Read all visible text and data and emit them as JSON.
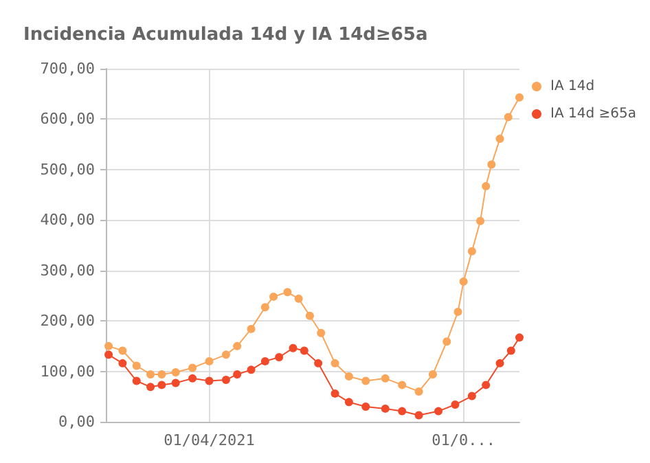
{
  "chart_data": {
    "type": "line",
    "title": "Incidencia Acumulada 14d y IA 14d≥65a",
    "series": [
      {
        "name": "IA 14d",
        "color": "#f9a55a",
        "x": [
          "2021-02-24",
          "2021-03-01",
          "2021-03-06",
          "2021-03-11",
          "2021-03-15",
          "2021-03-20",
          "2021-03-26",
          "2021-04-01",
          "2021-04-07",
          "2021-04-11",
          "2021-04-16",
          "2021-04-21",
          "2021-04-24",
          "2021-04-29",
          "2021-05-03",
          "2021-05-07",
          "2021-05-11",
          "2021-05-16",
          "2021-05-21",
          "2021-05-27",
          "2021-06-03",
          "2021-06-09",
          "2021-06-15",
          "2021-06-20",
          "2021-06-25",
          "2021-06-29",
          "2021-07-01",
          "2021-07-04",
          "2021-07-07",
          "2021-07-09",
          "2021-07-11",
          "2021-07-14",
          "2021-07-17",
          "2021-07-21"
        ],
        "values": [
          150,
          141,
          111,
          94,
          94,
          98,
          107,
          120,
          133,
          150,
          184,
          227,
          248,
          257,
          244,
          210,
          176,
          116,
          90,
          81,
          86,
          73,
          60,
          94,
          159,
          218,
          278,
          338,
          398,
          467,
          510,
          561,
          604,
          643
        ]
      },
      {
        "name": "IA 14d ≥65a",
        "color": "#f04a2a",
        "x": [
          "2021-02-24",
          "2021-03-01",
          "2021-03-06",
          "2021-03-11",
          "2021-03-15",
          "2021-03-20",
          "2021-03-26",
          "2021-04-01",
          "2021-04-07",
          "2021-04-11",
          "2021-04-16",
          "2021-04-21",
          "2021-04-26",
          "2021-05-01",
          "2021-05-05",
          "2021-05-10",
          "2021-05-16",
          "2021-05-21",
          "2021-05-27",
          "2021-06-03",
          "2021-06-09",
          "2021-06-15",
          "2021-06-22",
          "2021-06-28",
          "2021-07-04",
          "2021-07-09",
          "2021-07-14",
          "2021-07-18",
          "2021-07-21"
        ],
        "values": [
          133,
          116,
          81,
          69,
          73,
          77,
          86,
          81,
          83,
          94,
          103,
          120,
          128,
          146,
          141,
          116,
          56,
          39,
          30,
          26,
          21,
          13,
          21,
          34,
          51,
          73,
          116,
          141,
          167
        ]
      }
    ],
    "xlim": [
      "2021-02-23",
      "2021-07-21"
    ],
    "xticks": [
      {
        "value": "2021-04-01",
        "label": "01/04/2021"
      },
      {
        "value": "2021-07-01",
        "label": "01/0..."
      }
    ],
    "ylim": [
      0,
      700
    ],
    "yticks": [
      {
        "value": 0,
        "label": "0,00"
      },
      {
        "value": 100,
        "label": "100,00"
      },
      {
        "value": 200,
        "label": "200,00"
      },
      {
        "value": 300,
        "label": "300,00"
      },
      {
        "value": 400,
        "label": "400,00"
      },
      {
        "value": 500,
        "label": "500,00"
      },
      {
        "value": 600,
        "label": "600,00"
      },
      {
        "value": 700,
        "label": "700,00"
      }
    ],
    "grid": true,
    "legend": "top right",
    "marker": "circle",
    "line_style": "solid"
  }
}
